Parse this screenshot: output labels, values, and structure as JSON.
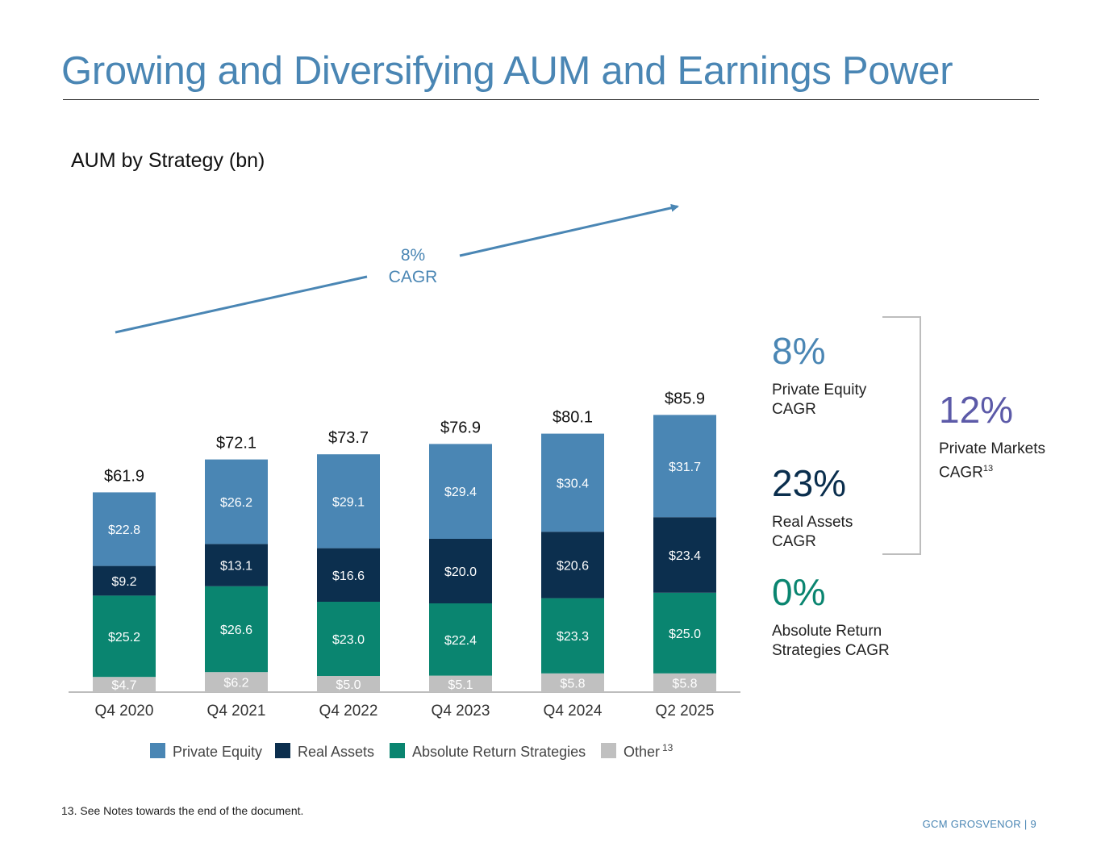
{
  "page": {
    "title": "Growing and Diversifying AUM and Earnings Power",
    "subtitle": "AUM by Strategy (bn)",
    "footnote": "13. See Notes towards the end of the document.",
    "footer": "GCM GROSVENOR | 9"
  },
  "stats": {
    "pe": {
      "value": "8%",
      "label_line1": "Private Equity",
      "label_line2": "CAGR"
    },
    "ra": {
      "value": "23%",
      "label_line1": "Real Assets",
      "label_line2": "CAGR"
    },
    "ars": {
      "value": "0%",
      "label_line1": "Absolute Return",
      "label_line2": "Strategies CAGR"
    },
    "pm": {
      "value": "12%",
      "label_line1": "Private Markets",
      "label_line2": "CAGR",
      "note": "13"
    }
  },
  "chart_data": {
    "type": "bar",
    "stacked": true,
    "title": "AUM by Strategy (bn)",
    "categories": [
      "Q4 2020",
      "Q4 2021",
      "Q4 2022",
      "Q4 2023",
      "Q4 2024",
      "Q2 2025"
    ],
    "series": [
      {
        "name": "Other",
        "note": "13",
        "color": "#c0c0c0",
        "values": [
          4.7,
          6.2,
          5.0,
          5.1,
          5.8,
          5.8
        ],
        "labels": [
          "$4.7",
          "$6.2",
          "$5.0",
          "$5.1",
          "$5.8",
          "$5.8"
        ]
      },
      {
        "name": "Absolute Return Strategies",
        "color": "#0a8570",
        "values": [
          25.2,
          26.6,
          23.0,
          22.4,
          23.3,
          25.0
        ],
        "labels": [
          "$25.2",
          "$26.6",
          "$23.0",
          "$22.4",
          "$23.3",
          "$25.0"
        ]
      },
      {
        "name": "Real Assets",
        "color": "#0c2f4e",
        "values": [
          9.2,
          13.1,
          16.6,
          20.0,
          20.6,
          23.4
        ],
        "labels": [
          "$9.2",
          "$13.1",
          "$16.6",
          "$20.0",
          "$20.6",
          "$23.4"
        ]
      },
      {
        "name": "Private Equity",
        "color": "#4a86b4",
        "values": [
          22.8,
          26.2,
          29.1,
          29.4,
          30.4,
          31.7
        ],
        "labels": [
          "$22.8",
          "$26.2",
          "$29.1",
          "$29.4",
          "$30.4",
          "$31.7"
        ]
      }
    ],
    "totals": [
      61.9,
      72.1,
      73.7,
      76.9,
      80.1,
      85.9
    ],
    "total_labels": [
      "$61.9",
      "$72.1",
      "$73.7",
      "$76.9",
      "$80.1",
      "$85.9"
    ],
    "legend_order": [
      "Private Equity",
      "Real Assets",
      "Absolute Return Strategies",
      "Other"
    ],
    "legend_position": "bottom",
    "trend": {
      "label_line1": "8%",
      "label_line2": "CAGR",
      "color": "#4a86b4"
    }
  }
}
